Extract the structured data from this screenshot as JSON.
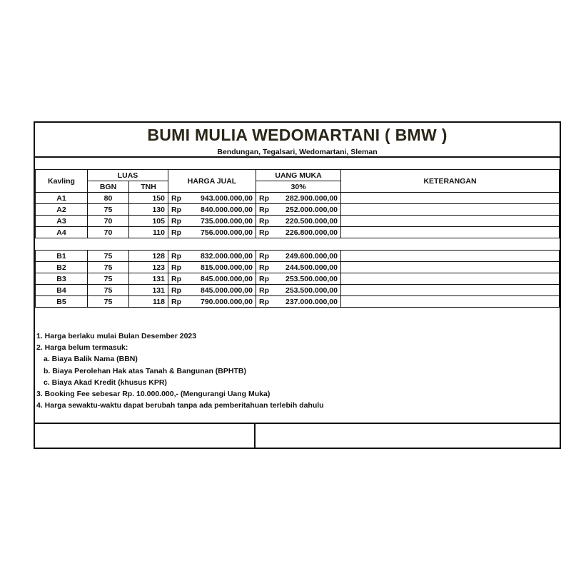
{
  "title": "BUMI MULIA WEDOMARTANI ( BMW )",
  "subtitle": "Bendungan, Tegalsari, Wedomartani, Sleman",
  "headers": {
    "kavling": "Kavling",
    "luas": "LUAS",
    "bgn": "BGN",
    "tnh": "TNH",
    "harga_jual": "HARGA JUAL",
    "uang_muka": "UANG MUKA",
    "uang_muka_pct": "30%",
    "keterangan": "KETERANGAN"
  },
  "currency": "Rp",
  "group_a": [
    {
      "kavling": "A1",
      "bgn": "80",
      "tnh": "150",
      "harga": "943.000.000,00",
      "dp": "282.900.000,00"
    },
    {
      "kavling": "A2",
      "bgn": "75",
      "tnh": "130",
      "harga": "840.000.000,00",
      "dp": "252.000.000,00"
    },
    {
      "kavling": "A3",
      "bgn": "70",
      "tnh": "105",
      "harga": "735.000.000,00",
      "dp": "220.500.000,00"
    },
    {
      "kavling": "A4",
      "bgn": "70",
      "tnh": "110",
      "harga": "756.000.000,00",
      "dp": "226.800.000,00"
    }
  ],
  "group_b": [
    {
      "kavling": "B1",
      "bgn": "75",
      "tnh": "128",
      "harga": "832.000.000,00",
      "dp": "249.600.000,00"
    },
    {
      "kavling": "B2",
      "bgn": "75",
      "tnh": "123",
      "harga": "815.000.000,00",
      "dp": "244.500.000,00"
    },
    {
      "kavling": "B3",
      "bgn": "75",
      "tnh": "131",
      "harga": "845.000.000,00",
      "dp": "253.500.000,00"
    },
    {
      "kavling": "B4",
      "bgn": "75",
      "tnh": "131",
      "harga": "845.000.000,00",
      "dp": "253.500.000,00"
    },
    {
      "kavling": "B5",
      "bgn": "75",
      "tnh": "118",
      "harga": "790.000.000,00",
      "dp": "237.000.000,00"
    }
  ],
  "notes": [
    {
      "text": "1. Harga berlaku mulai Bulan  Desember 2023",
      "indent": false
    },
    {
      "text": "2. Harga belum termasuk:",
      "indent": false
    },
    {
      "text": "a. Biaya Balik Nama (BBN)",
      "indent": true
    },
    {
      "text": "b. Biaya Perolehan Hak atas Tanah & Bangunan (BPHTB)",
      "indent": true
    },
    {
      "text": "c. Biaya Akad Kredit (khusus KPR)",
      "indent": true
    },
    {
      "text": "3. Booking Fee sebesar Rp. 10.000.000,- (Mengurangi Uang Muka)",
      "indent": false
    },
    {
      "text": "4. Harga sewaktu-waktu dapat berubah tanpa ada pemberitahuan terlebih dahulu",
      "indent": false
    }
  ]
}
